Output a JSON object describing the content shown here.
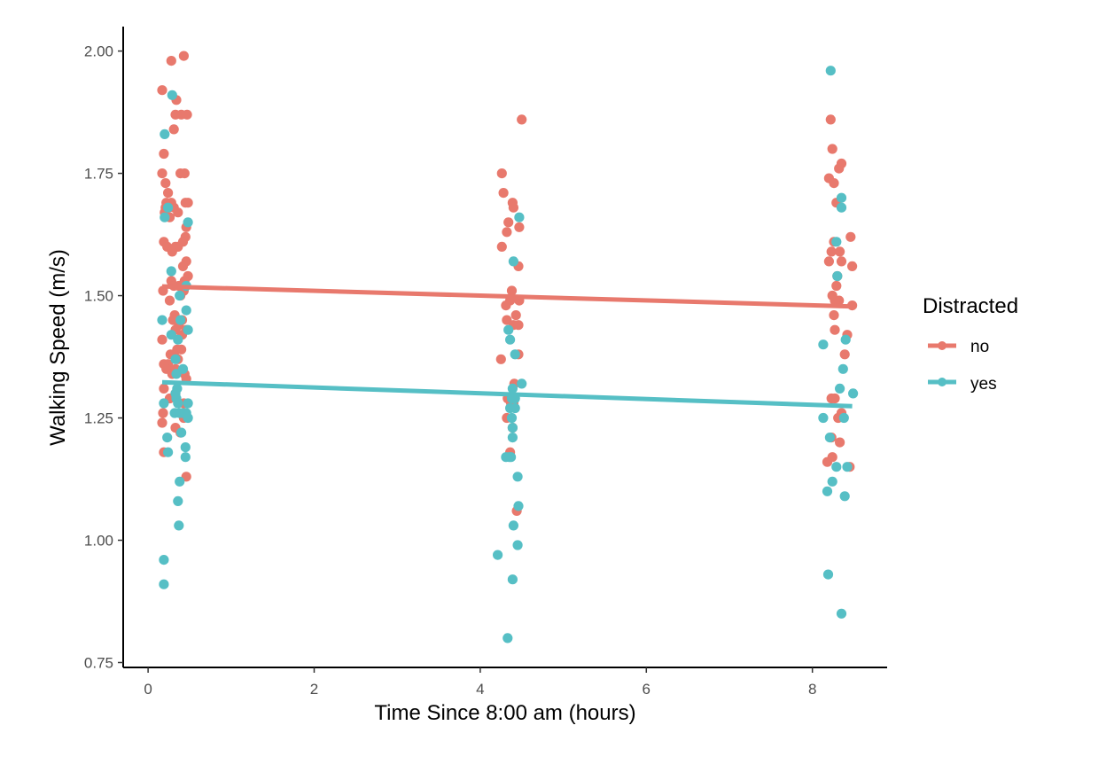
{
  "chart_data": {
    "type": "scatter",
    "title": "",
    "xlabel": "Time Since 8:00 am (hours)",
    "ylabel": "Walking Speed (m/s)",
    "xlim": [
      -0.3,
      8.9
    ],
    "ylim": [
      0.74,
      2.05
    ],
    "x_ticks": [
      0,
      2,
      4,
      6,
      8
    ],
    "x_tick_labels": [
      "0",
      "2",
      "4",
      "6",
      "8"
    ],
    "y_ticks": [
      0.75,
      1.0,
      1.25,
      1.5,
      1.75,
      2.0
    ],
    "y_tick_labels": [
      "0.75",
      "1.00",
      "1.25",
      "1.50",
      "1.75",
      "2.00"
    ],
    "grid": false,
    "legend": {
      "title": "Distracted",
      "position": "right",
      "entries": [
        "no",
        "yes"
      ]
    },
    "series": [
      {
        "name": "no",
        "color": "#E8796D",
        "points": [
          [
            0.43,
            1.99
          ],
          [
            0.28,
            1.98
          ],
          [
            0.17,
            1.92
          ],
          [
            0.34,
            1.9
          ],
          [
            0.33,
            1.87
          ],
          [
            0.4,
            1.87
          ],
          [
            0.47,
            1.87
          ],
          [
            0.31,
            1.84
          ],
          [
            0.19,
            1.79
          ],
          [
            0.17,
            1.75
          ],
          [
            0.39,
            1.75
          ],
          [
            0.44,
            1.75
          ],
          [
            0.21,
            1.73
          ],
          [
            0.24,
            1.71
          ],
          [
            0.48,
            1.69
          ],
          [
            0.22,
            1.69
          ],
          [
            0.28,
            1.69
          ],
          [
            0.45,
            1.69
          ],
          [
            0.25,
            1.68
          ],
          [
            0.21,
            1.68
          ],
          [
            0.31,
            1.68
          ],
          [
            0.36,
            1.67
          ],
          [
            0.2,
            1.67
          ],
          [
            0.26,
            1.66
          ],
          [
            0.46,
            1.64
          ],
          [
            0.45,
            1.62
          ],
          [
            0.19,
            1.61
          ],
          [
            0.42,
            1.61
          ],
          [
            0.36,
            1.6
          ],
          [
            0.33,
            1.6
          ],
          [
            0.23,
            1.6
          ],
          [
            0.29,
            1.59
          ],
          [
            0.46,
            1.57
          ],
          [
            0.42,
            1.56
          ],
          [
            0.48,
            1.54
          ],
          [
            0.44,
            1.53
          ],
          [
            0.28,
            1.53
          ],
          [
            0.37,
            1.52
          ],
          [
            0.31,
            1.52
          ],
          [
            0.18,
            1.51
          ],
          [
            0.43,
            1.51
          ],
          [
            0.39,
            1.5
          ],
          [
            0.26,
            1.49
          ],
          [
            0.32,
            1.46
          ],
          [
            0.41,
            1.45
          ],
          [
            0.3,
            1.45
          ],
          [
            0.37,
            1.44
          ],
          [
            0.33,
            1.43
          ],
          [
            0.46,
            1.43
          ],
          [
            0.41,
            1.42
          ],
          [
            0.17,
            1.41
          ],
          [
            0.35,
            1.39
          ],
          [
            0.4,
            1.39
          ],
          [
            0.27,
            1.38
          ],
          [
            0.31,
            1.38
          ],
          [
            0.36,
            1.37
          ],
          [
            0.19,
            1.36
          ],
          [
            0.24,
            1.36
          ],
          [
            0.22,
            1.35
          ],
          [
            0.33,
            1.35
          ],
          [
            0.44,
            1.34
          ],
          [
            0.29,
            1.34
          ],
          [
            0.46,
            1.33
          ],
          [
            0.19,
            1.31
          ],
          [
            0.33,
            1.3
          ],
          [
            0.26,
            1.29
          ],
          [
            0.43,
            1.28
          ],
          [
            0.18,
            1.26
          ],
          [
            0.43,
            1.25
          ],
          [
            0.17,
            1.24
          ],
          [
            0.33,
            1.23
          ],
          [
            0.39,
            1.22
          ],
          [
            0.19,
            1.18
          ],
          [
            0.46,
            1.13
          ],
          [
            4.5,
            1.86
          ],
          [
            4.26,
            1.75
          ],
          [
            4.28,
            1.71
          ],
          [
            4.39,
            1.69
          ],
          [
            4.4,
            1.68
          ],
          [
            4.34,
            1.65
          ],
          [
            4.47,
            1.64
          ],
          [
            4.32,
            1.63
          ],
          [
            4.26,
            1.6
          ],
          [
            4.46,
            1.56
          ],
          [
            4.38,
            1.51
          ],
          [
            4.36,
            1.49
          ],
          [
            4.47,
            1.49
          ],
          [
            4.31,
            1.48
          ],
          [
            4.43,
            1.46
          ],
          [
            4.32,
            1.45
          ],
          [
            4.4,
            1.44
          ],
          [
            4.46,
            1.44
          ],
          [
            4.46,
            1.38
          ],
          [
            4.25,
            1.37
          ],
          [
            4.41,
            1.32
          ],
          [
            4.33,
            1.29
          ],
          [
            4.4,
            1.28
          ],
          [
            4.37,
            1.28
          ],
          [
            4.32,
            1.25
          ],
          [
            4.39,
            1.23
          ],
          [
            4.36,
            1.18
          ],
          [
            4.44,
            1.06
          ],
          [
            8.22,
            1.86
          ],
          [
            8.24,
            1.8
          ],
          [
            8.35,
            1.77
          ],
          [
            8.32,
            1.76
          ],
          [
            8.2,
            1.74
          ],
          [
            8.26,
            1.73
          ],
          [
            8.29,
            1.69
          ],
          [
            8.46,
            1.62
          ],
          [
            8.26,
            1.61
          ],
          [
            8.23,
            1.59
          ],
          [
            8.33,
            1.59
          ],
          [
            8.2,
            1.57
          ],
          [
            8.35,
            1.57
          ],
          [
            8.48,
            1.56
          ],
          [
            8.3,
            1.54
          ],
          [
            8.29,
            1.52
          ],
          [
            8.24,
            1.5
          ],
          [
            8.32,
            1.49
          ],
          [
            8.27,
            1.49
          ],
          [
            8.48,
            1.48
          ],
          [
            8.26,
            1.46
          ],
          [
            8.27,
            1.43
          ],
          [
            8.42,
            1.42
          ],
          [
            8.39,
            1.38
          ],
          [
            8.23,
            1.29
          ],
          [
            8.27,
            1.29
          ],
          [
            8.35,
            1.26
          ],
          [
            8.31,
            1.25
          ],
          [
            8.23,
            1.21
          ],
          [
            8.33,
            1.2
          ],
          [
            8.24,
            1.17
          ],
          [
            8.18,
            1.16
          ],
          [
            8.45,
            1.15
          ]
        ],
        "trend": {
          "x": [
            0.17,
            8.48
          ],
          "y": [
            1.519,
            1.478
          ]
        }
      },
      {
        "name": "yes",
        "color": "#56BFC5",
        "points": [
          [
            0.29,
            1.91
          ],
          [
            0.2,
            1.83
          ],
          [
            0.24,
            1.68
          ],
          [
            0.2,
            1.66
          ],
          [
            0.48,
            1.65
          ],
          [
            0.28,
            1.55
          ],
          [
            0.46,
            1.52
          ],
          [
            0.38,
            1.5
          ],
          [
            0.46,
            1.47
          ],
          [
            0.39,
            1.45
          ],
          [
            0.17,
            1.45
          ],
          [
            0.48,
            1.43
          ],
          [
            0.28,
            1.42
          ],
          [
            0.36,
            1.41
          ],
          [
            0.33,
            1.37
          ],
          [
            0.42,
            1.35
          ],
          [
            0.34,
            1.34
          ],
          [
            0.35,
            1.31
          ],
          [
            0.33,
            1.3
          ],
          [
            0.34,
            1.29
          ],
          [
            0.48,
            1.28
          ],
          [
            0.19,
            1.28
          ],
          [
            0.36,
            1.28
          ],
          [
            0.32,
            1.26
          ],
          [
            0.38,
            1.26
          ],
          [
            0.42,
            1.26
          ],
          [
            0.46,
            1.26
          ],
          [
            0.48,
            1.25
          ],
          [
            0.4,
            1.22
          ],
          [
            0.23,
            1.21
          ],
          [
            0.45,
            1.19
          ],
          [
            0.24,
            1.18
          ],
          [
            0.45,
            1.17
          ],
          [
            0.38,
            1.12
          ],
          [
            0.36,
            1.08
          ],
          [
            0.37,
            1.03
          ],
          [
            0.19,
            0.96
          ],
          [
            0.19,
            0.91
          ],
          [
            4.47,
            1.66
          ],
          [
            4.4,
            1.57
          ],
          [
            4.34,
            1.43
          ],
          [
            4.36,
            1.41
          ],
          [
            4.42,
            1.38
          ],
          [
            4.5,
            1.32
          ],
          [
            4.39,
            1.31
          ],
          [
            4.42,
            1.29
          ],
          [
            4.38,
            1.29
          ],
          [
            4.36,
            1.27
          ],
          [
            4.42,
            1.27
          ],
          [
            4.38,
            1.25
          ],
          [
            4.39,
            1.23
          ],
          [
            4.39,
            1.21
          ],
          [
            4.31,
            1.17
          ],
          [
            4.37,
            1.17
          ],
          [
            4.35,
            1.17
          ],
          [
            4.45,
            1.13
          ],
          [
            4.46,
            1.07
          ],
          [
            4.4,
            1.03
          ],
          [
            4.45,
            0.99
          ],
          [
            4.21,
            0.97
          ],
          [
            4.39,
            0.92
          ],
          [
            4.33,
            0.8
          ],
          [
            8.22,
            1.96
          ],
          [
            8.35,
            1.7
          ],
          [
            8.35,
            1.68
          ],
          [
            8.29,
            1.61
          ],
          [
            8.3,
            1.54
          ],
          [
            8.4,
            1.41
          ],
          [
            8.13,
            1.4
          ],
          [
            8.37,
            1.35
          ],
          [
            8.33,
            1.31
          ],
          [
            8.49,
            1.3
          ],
          [
            8.38,
            1.25
          ],
          [
            8.13,
            1.25
          ],
          [
            8.21,
            1.21
          ],
          [
            8.29,
            1.15
          ],
          [
            8.42,
            1.15
          ],
          [
            8.24,
            1.12
          ],
          [
            8.18,
            1.1
          ],
          [
            8.39,
            1.09
          ],
          [
            8.19,
            0.93
          ],
          [
            8.35,
            0.85
          ]
        ],
        "trend": {
          "x": [
            0.17,
            8.48
          ],
          "y": [
            1.323,
            1.274
          ]
        }
      }
    ]
  }
}
